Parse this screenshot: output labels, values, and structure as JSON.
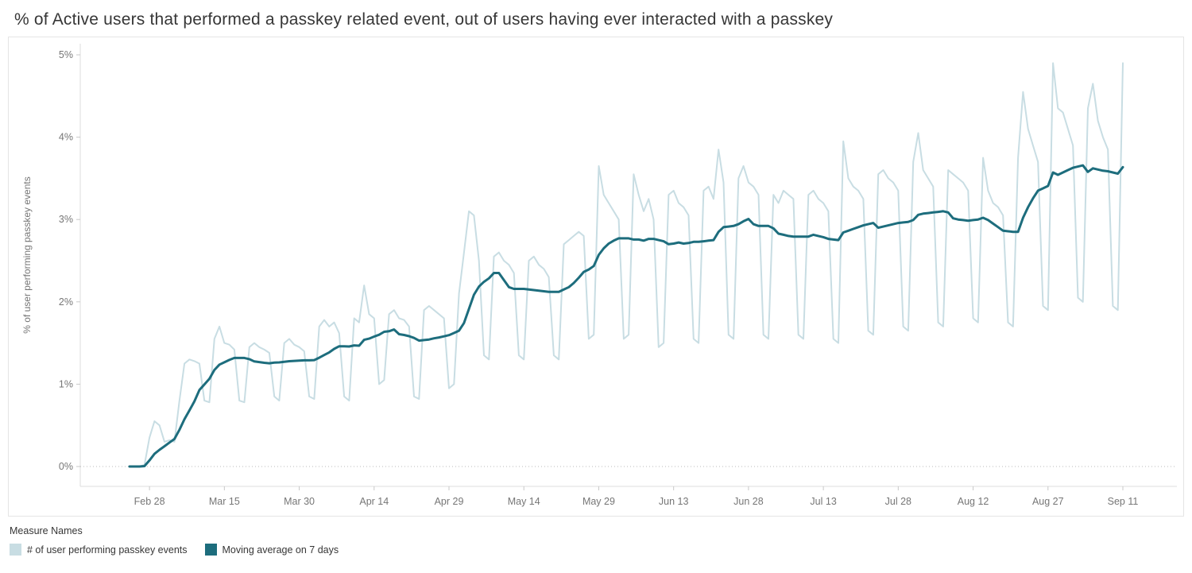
{
  "title": "% of Active users that performed a passkey related event, out of users having ever interacted with a passkey",
  "colors": {
    "daily_series": "#c8dde3",
    "moving_average": "#1d6d7d",
    "axis_line": "#dcdcdc",
    "tick_text": "#767676",
    "zero_gridline": "#b9b9b9",
    "title_text": "#363636"
  },
  "chart_data": {
    "type": "line",
    "title": "% of Active users that performed a passkey related event, out of users having ever interacted with a passkey",
    "xlabel": "",
    "ylabel": "% of user performing passkey events",
    "ylim": [
      0,
      5
    ],
    "y_axis": {
      "label": "% of user performing passkey events",
      "tick_labels": [
        "0%",
        "1%",
        "2%",
        "3%",
        "4%",
        "5%"
      ],
      "unit": "%"
    },
    "x_axis": {
      "cadence": "daily",
      "start_label": "Feb 24",
      "end_label": "Sep 11",
      "tick_labels": [
        "Feb 28",
        "Mar 15",
        "Mar 30",
        "Apr 14",
        "Apr 29",
        "May 14",
        "May 29",
        "Jun 13",
        "Jun 28",
        "Jul 13",
        "Jul 28",
        "Aug 12",
        "Aug 27",
        "Sep 11"
      ],
      "tick_indices": [
        4,
        19,
        34,
        49,
        64,
        79,
        94,
        109,
        124,
        139,
        154,
        169,
        184,
        199
      ]
    },
    "grid": "zero-line-only",
    "zero_line_style": "dotted",
    "legend_position": "bottom-left",
    "series": [
      {
        "name": "# of user performing passkey events",
        "color": "#c8dde3",
        "stroke_width": 2,
        "values": [
          0.0,
          0.0,
          0.0,
          0.02,
          0.35,
          0.55,
          0.5,
          0.3,
          0.32,
          0.3,
          0.8,
          1.25,
          1.3,
          1.28,
          1.25,
          0.8,
          0.78,
          1.55,
          1.7,
          1.5,
          1.48,
          1.42,
          0.8,
          0.78,
          1.45,
          1.5,
          1.45,
          1.42,
          1.38,
          0.85,
          0.8,
          1.5,
          1.55,
          1.48,
          1.45,
          1.4,
          0.85,
          0.82,
          1.7,
          1.78,
          1.7,
          1.75,
          1.62,
          0.85,
          0.8,
          1.8,
          1.75,
          2.2,
          1.85,
          1.8,
          1.0,
          1.05,
          1.85,
          1.9,
          1.8,
          1.78,
          1.7,
          0.85,
          0.82,
          1.9,
          1.95,
          1.9,
          1.85,
          1.8,
          0.95,
          1.0,
          2.1,
          2.6,
          3.1,
          3.05,
          2.5,
          1.35,
          1.3,
          2.55,
          2.6,
          2.5,
          2.45,
          2.35,
          1.35,
          1.3,
          2.5,
          2.55,
          2.45,
          2.4,
          2.3,
          1.35,
          1.3,
          2.7,
          2.75,
          2.8,
          2.85,
          2.8,
          1.55,
          1.6,
          3.65,
          3.3,
          3.2,
          3.1,
          3.0,
          1.55,
          1.6,
          3.55,
          3.3,
          3.1,
          3.25,
          3.0,
          1.45,
          1.5,
          3.3,
          3.35,
          3.2,
          3.15,
          3.05,
          1.55,
          1.5,
          3.35,
          3.4,
          3.25,
          3.85,
          3.45,
          1.6,
          1.55,
          3.5,
          3.65,
          3.45,
          3.4,
          3.3,
          1.6,
          1.55,
          3.3,
          3.2,
          3.35,
          3.3,
          3.25,
          1.6,
          1.55,
          3.3,
          3.35,
          3.25,
          3.2,
          3.1,
          1.55,
          1.5,
          3.95,
          3.5,
          3.4,
          3.35,
          3.25,
          1.65,
          1.6,
          3.55,
          3.6,
          3.5,
          3.45,
          3.35,
          1.7,
          1.65,
          3.7,
          4.05,
          3.6,
          3.5,
          3.4,
          1.75,
          1.7,
          3.6,
          3.55,
          3.5,
          3.45,
          3.35,
          1.8,
          1.75,
          3.75,
          3.35,
          3.2,
          3.15,
          3.05,
          1.75,
          1.7,
          3.75,
          4.55,
          4.1,
          3.9,
          3.7,
          1.95,
          1.9,
          4.9,
          4.35,
          4.3,
          4.1,
          3.9,
          2.05,
          2.0,
          4.35,
          4.65,
          4.2,
          4.0,
          3.85,
          1.95,
          1.9,
          4.9
        ]
      },
      {
        "name": "Moving average on 7 days",
        "color": "#1d6d7d",
        "stroke_width": 3,
        "derivation": "trailing 7-day moving average of the daily series"
      }
    ]
  },
  "legend": {
    "title": "Measure Names",
    "items": [
      {
        "label": "# of user performing passkey events",
        "color": "#c8dde3"
      },
      {
        "label": "Moving average on 7 days",
        "color": "#1d6d7d"
      }
    ]
  }
}
